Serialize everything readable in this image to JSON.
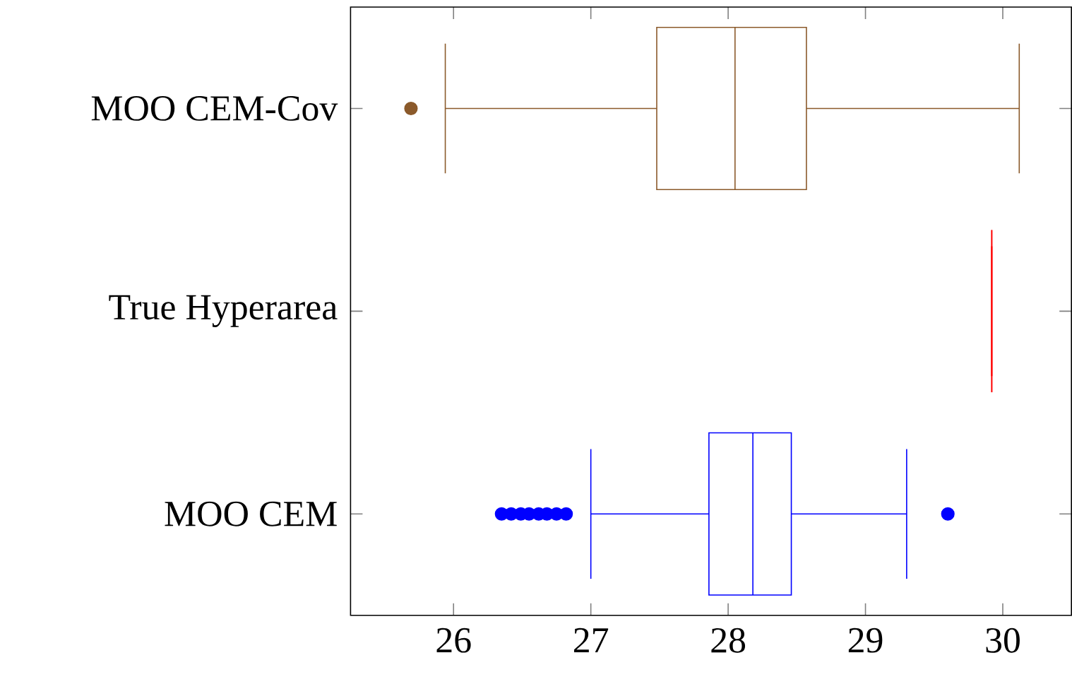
{
  "chart_data": {
    "type": "box",
    "orientation": "horizontal",
    "categories": [
      "MOO CEM-Cov",
      "True Hyperarea",
      "MOO CEM"
    ],
    "boxes": [
      {
        "low": 25.94,
        "q1": 27.48,
        "median": 28.05,
        "q3": 28.57,
        "high": 30.12,
        "outliers": [
          25.69
        ]
      },
      {
        "low": 29.92,
        "q1": 29.92,
        "median": 29.92,
        "q3": 29.92,
        "high": 29.92
      },
      {
        "low": 27.0,
        "q1": 27.86,
        "median": 28.18,
        "q3": 28.46,
        "high": 29.3,
        "outliers": [
          26.35,
          26.42,
          26.49,
          26.55,
          26.62,
          26.68,
          26.75,
          26.82,
          29.6
        ]
      }
    ],
    "colors": [
      "#8b5a2b",
      "#ff0000",
      "#0000ff"
    ],
    "xlim": [
      25.25,
      30.5
    ],
    "xticks": [
      26,
      27,
      28,
      29,
      30
    ],
    "marker": "circle",
    "grid": false
  }
}
